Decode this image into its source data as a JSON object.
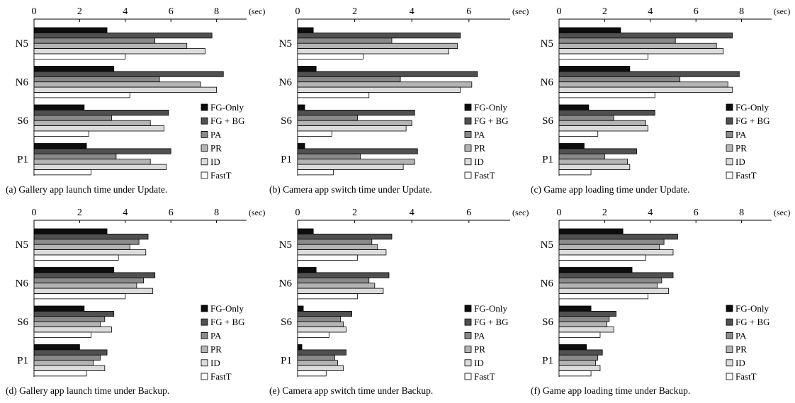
{
  "chart_data": [
    {
      "type": "bar",
      "caption": "(a) Gallery app launch time under Update.",
      "categories": [
        "N5",
        "N6",
        "S6",
        "P1"
      ],
      "unit": "(sec)",
      "xlim": [
        0,
        10
      ],
      "xticks": [
        0,
        2,
        4,
        6,
        8
      ],
      "legend_position": "right",
      "series": [
        {
          "name": "FG-Only",
          "values": [
            3.2,
            3.5,
            2.2,
            2.3
          ]
        },
        {
          "name": "FG + BG",
          "values": [
            7.8,
            8.3,
            5.9,
            6.0
          ]
        },
        {
          "name": "PA",
          "values": [
            5.3,
            5.5,
            3.4,
            3.6
          ]
        },
        {
          "name": "PR",
          "values": [
            6.7,
            7.3,
            5.1,
            5.1
          ]
        },
        {
          "name": "ID",
          "values": [
            7.5,
            8.0,
            5.7,
            5.8
          ]
        },
        {
          "name": "FastT",
          "values": [
            4.0,
            4.2,
            2.4,
            2.5
          ]
        }
      ]
    },
    {
      "type": "bar",
      "caption": "(b) Camera app switch time under Update.",
      "categories": [
        "N5",
        "N6",
        "S6",
        "P1"
      ],
      "unit": "(sec)",
      "xlim": [
        0,
        7
      ],
      "xticks": [
        0,
        2,
        4,
        6
      ],
      "legend_position": "right",
      "series": [
        {
          "name": "FG-Only",
          "values": [
            0.55,
            0.65,
            0.25,
            0.25
          ]
        },
        {
          "name": "FG + BG",
          "values": [
            5.7,
            6.3,
            4.1,
            4.2
          ]
        },
        {
          "name": "PA",
          "values": [
            3.3,
            3.6,
            2.1,
            2.2
          ]
        },
        {
          "name": "PR",
          "values": [
            5.6,
            6.1,
            4.0,
            4.1
          ]
        },
        {
          "name": "ID",
          "values": [
            5.3,
            5.7,
            3.8,
            3.7
          ]
        },
        {
          "name": "FastT",
          "values": [
            2.3,
            2.5,
            1.2,
            1.25
          ]
        }
      ]
    },
    {
      "type": "bar",
      "caption": "(c) Game app loading time under Update.",
      "categories": [
        "N5",
        "N6",
        "S6",
        "P1"
      ],
      "unit": "(sec)",
      "xlim": [
        0,
        10
      ],
      "xticks": [
        0,
        2,
        4,
        6,
        8
      ],
      "legend_position": "right",
      "series": [
        {
          "name": "FG-Only",
          "values": [
            2.7,
            3.1,
            1.3,
            1.1
          ]
        },
        {
          "name": "FG + BG",
          "values": [
            7.6,
            7.9,
            4.2,
            3.4
          ]
        },
        {
          "name": "PA",
          "values": [
            5.1,
            5.3,
            2.4,
            2.0
          ]
        },
        {
          "name": "PR",
          "values": [
            6.9,
            7.4,
            3.8,
            3.0
          ]
        },
        {
          "name": "ID",
          "values": [
            7.2,
            7.6,
            3.9,
            3.1
          ]
        },
        {
          "name": "FastT",
          "values": [
            3.9,
            4.2,
            1.7,
            1.4
          ]
        }
      ]
    },
    {
      "type": "bar",
      "caption": "(d) Gallery app launch time under Backup.",
      "categories": [
        "N5",
        "N6",
        "S6",
        "P1"
      ],
      "unit": "(sec)",
      "xlim": [
        0,
        10
      ],
      "xticks": [
        0,
        2,
        4,
        6,
        8
      ],
      "legend_position": "right",
      "series": [
        {
          "name": "FG-Only",
          "values": [
            3.2,
            3.5,
            2.2,
            2.0
          ]
        },
        {
          "name": "FG + BG",
          "values": [
            5.0,
            5.3,
            3.5,
            3.2
          ]
        },
        {
          "name": "PA",
          "values": [
            4.6,
            4.8,
            3.1,
            2.9
          ]
        },
        {
          "name": "PR",
          "values": [
            4.2,
            4.5,
            2.9,
            2.6
          ]
        },
        {
          "name": "ID",
          "values": [
            4.9,
            5.2,
            3.4,
            3.1
          ]
        },
        {
          "name": "FastT",
          "values": [
            3.7,
            4.0,
            2.5,
            2.3
          ]
        }
      ]
    },
    {
      "type": "bar",
      "caption": "(e) Camera app switch time under Backup.",
      "categories": [
        "N5",
        "N6",
        "S6",
        "P1"
      ],
      "unit": "(sec)",
      "xlim": [
        0,
        7
      ],
      "xticks": [
        0,
        2,
        4,
        6
      ],
      "legend_position": "right",
      "series": [
        {
          "name": "FG-Only",
          "values": [
            0.55,
            0.65,
            0.2,
            0.15
          ]
        },
        {
          "name": "FG + BG",
          "values": [
            3.3,
            3.2,
            1.9,
            1.7
          ]
        },
        {
          "name": "PA",
          "values": [
            2.6,
            2.5,
            1.5,
            1.3
          ]
        },
        {
          "name": "PR",
          "values": [
            2.8,
            2.7,
            1.6,
            1.4
          ]
        },
        {
          "name": "ID",
          "values": [
            3.1,
            3.0,
            1.7,
            1.6
          ]
        },
        {
          "name": "FastT",
          "values": [
            2.1,
            2.1,
            1.1,
            1.0
          ]
        }
      ]
    },
    {
      "type": "bar",
      "caption": "(f) Game app loading time under Backup.",
      "categories": [
        "N5",
        "N6",
        "S6",
        "P1"
      ],
      "unit": "(sec)",
      "xlim": [
        0,
        10
      ],
      "xticks": [
        0,
        2,
        4,
        6,
        8
      ],
      "legend_position": "right",
      "series": [
        {
          "name": "FG-Only",
          "values": [
            2.8,
            3.2,
            1.4,
            1.2
          ]
        },
        {
          "name": "FG + BG",
          "values": [
            5.2,
            5.0,
            2.5,
            1.9
          ]
        },
        {
          "name": "PA",
          "values": [
            4.6,
            4.5,
            2.2,
            1.7
          ]
        },
        {
          "name": "PR",
          "values": [
            4.4,
            4.3,
            2.1,
            1.6
          ]
        },
        {
          "name": "ID",
          "values": [
            5.0,
            4.8,
            2.4,
            1.8
          ]
        },
        {
          "name": "FastT",
          "values": [
            3.8,
            3.9,
            1.8,
            1.4
          ]
        }
      ]
    }
  ],
  "colors": {
    "series": [
      "#0d0d0d",
      "#505050",
      "#8a8a8a",
      "#b4b4b4",
      "#dcdcdc",
      "#ffffff"
    ],
    "stroke": "#000000"
  }
}
